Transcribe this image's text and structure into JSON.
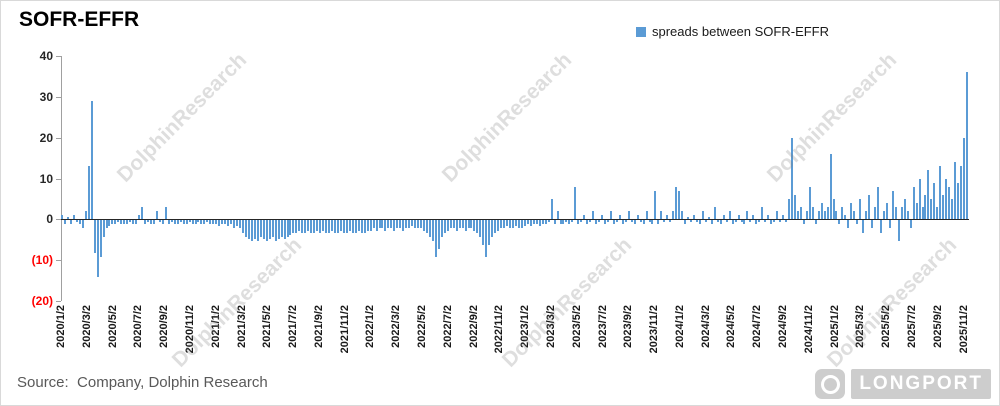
{
  "header": {
    "title": "SOFR-EFFR"
  },
  "legend": {
    "label": "spreads between SOFR-EFFR",
    "color": "#5B9BD5"
  },
  "watermark": {
    "text": "DolphinResearch"
  },
  "footer": {
    "source": "Source:  Company, Dolphin Research",
    "logo_text": "LONGPORT"
  },
  "chart_data": {
    "type": "bar",
    "title": "SOFR-EFFR",
    "series_name": "spreads between SOFR-EFFR",
    "bar_color": "#5B9BD5",
    "negative_tick_color": "#FF0000",
    "legend_position": "top",
    "grid": false,
    "ylim": [
      -20,
      40
    ],
    "y_ticks": [
      40,
      30,
      20,
      10,
      0,
      -10,
      -20
    ],
    "y_tick_labels": [
      "40",
      "30",
      "20",
      "10",
      "0",
      "(10)",
      "(20)"
    ],
    "x_start": "2020/1/2",
    "x_end": "2025/11/2",
    "x_tick_step_months": 2,
    "sampling": "weekly approximation read from dense daily bars",
    "x_tick_labels": [
      "2020/1/2",
      "2020/3/2",
      "2020/5/2",
      "2020/7/2",
      "2020/9/2",
      "2020/11/2",
      "2021/1/2",
      "2021/3/2",
      "2021/5/2",
      "2021/7/2",
      "2021/9/2",
      "2021/11/2",
      "2022/1/2",
      "2022/3/2",
      "2022/5/2",
      "2022/7/2",
      "2022/9/2",
      "2022/11/2",
      "2023/1/2",
      "2023/3/2",
      "2023/5/2",
      "2023/7/2",
      "2023/9/2",
      "2023/11/2",
      "2024/1/2",
      "2024/3/2",
      "2024/5/2",
      "2024/7/2",
      "2024/9/2",
      "2024/11/2",
      "2025/1/2",
      "2025/3/2",
      "2025/5/2",
      "2025/7/2",
      "2025/9/2",
      "2025/11/2"
    ],
    "values": [
      1,
      -1,
      0.5,
      -1,
      1,
      -0.5,
      -1,
      -2,
      2,
      13,
      29,
      -8,
      -14,
      -9,
      -4,
      -2,
      -1.5,
      -1,
      -1,
      -0.5,
      -1,
      -1,
      -1,
      -0.5,
      -1,
      -1,
      1,
      3,
      -1,
      -0.5,
      -1,
      -1,
      2,
      -0.5,
      -1,
      3,
      -1,
      -0.5,
      -1,
      -1,
      -0.5,
      -1,
      -1,
      -0.5,
      -1,
      -1,
      -0.5,
      -1,
      -1,
      -0.5,
      -1,
      -1,
      -1,
      -1.5,
      -1,
      -1,
      -1.5,
      -1,
      -2,
      -1.5,
      -2,
      -3,
      -4,
      -4.5,
      -5,
      -4.5,
      -5,
      -4,
      -4.5,
      -5,
      -4.5,
      -4,
      -5,
      -4.5,
      -4,
      -4.5,
      -4,
      -3.5,
      -3,
      -3,
      -2.5,
      -3,
      -3,
      -2.5,
      -3,
      -3,
      -2.5,
      -3,
      -2.5,
      -3,
      -3,
      -2.5,
      -3,
      -3,
      -2.5,
      -3,
      -3,
      -2.5,
      -3,
      -3,
      -2.5,
      -3,
      -3,
      -2.5,
      -2.5,
      -2,
      -2.5,
      -2,
      -2,
      -2.5,
      -2,
      -2,
      -2.5,
      -2,
      -2,
      -2.5,
      -2,
      -2,
      -1.5,
      -2,
      -2,
      -2,
      -2.5,
      -3,
      -4,
      -5,
      -9,
      -7,
      -4,
      -3,
      -2.5,
      -2,
      -2,
      -2.5,
      -2,
      -2,
      -2.5,
      -2,
      -2,
      -2.5,
      -3,
      -4,
      -6,
      -9,
      -6,
      -4,
      -3,
      -2.5,
      -2,
      -2,
      -1.5,
      -2,
      -2,
      -1.5,
      -2,
      -2,
      -1.5,
      -1,
      -1.5,
      -1,
      -1,
      -1.5,
      -1,
      -1,
      -0.5,
      5,
      -1,
      2,
      -1,
      -1,
      -0.5,
      -1,
      -0.5,
      8,
      -1,
      -0.5,
      1,
      -1,
      -0.5,
      2,
      -1,
      -0.5,
      1,
      -1,
      -0.5,
      2,
      -1,
      -0.5,
      1,
      -1,
      -0.5,
      2,
      -0.5,
      -1,
      1,
      -0.5,
      -1,
      2,
      -0.5,
      -1,
      7,
      -1,
      2,
      -0.5,
      1,
      -0.5,
      2,
      8,
      7,
      2,
      -1,
      0.5,
      -0.5,
      1,
      -0.5,
      -1,
      2,
      -0.5,
      0.5,
      -1,
      3,
      -0.5,
      -1,
      1,
      -0.5,
      2,
      -1,
      -0.5,
      1,
      -0.5,
      -1,
      2,
      -0.5,
      1,
      -1,
      -0.5,
      3,
      -0.5,
      1,
      -1,
      -0.5,
      2,
      -0.5,
      1,
      -0.5,
      5,
      20,
      6,
      2,
      3,
      -1,
      2,
      8,
      3,
      -1,
      2,
      4,
      2,
      3,
      16,
      5,
      2,
      -1,
      3,
      1,
      -2,
      4,
      2,
      -1,
      5,
      -3,
      2,
      6,
      -2,
      3,
      8,
      -3,
      2,
      4,
      -2,
      7,
      3,
      -5,
      3,
      5,
      2,
      -2,
      8,
      4,
      10,
      3,
      6,
      12,
      5,
      9,
      3,
      13,
      6,
      10,
      8,
      5,
      14,
      9,
      13,
      20,
      36
    ]
  }
}
